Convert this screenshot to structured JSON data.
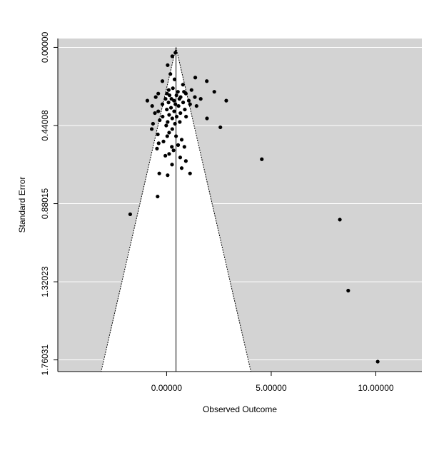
{
  "chart_data": {
    "type": "scatter",
    "title": "",
    "xlabel": "Observed Outcome",
    "ylabel": "Standard Error",
    "xlim": [
      -5.2,
      12.2
    ],
    "ylim": [
      1.826,
      -0.05
    ],
    "y_reversed": true,
    "x_ticks": [
      0,
      5,
      10
    ],
    "x_tick_labels": [
      "0.00000",
      "5.00000",
      "10.00000"
    ],
    "y_ticks": [
      0,
      0.44008,
      0.88015,
      1.32023,
      1.76031
    ],
    "y_tick_labels": [
      "0.00000",
      "0.44008",
      "0.88015",
      "1.32023",
      "1.76031"
    ],
    "grid": "horizontal",
    "background": "#d3d3d3",
    "funnel_fill": "#ffffff",
    "point_color": "#000000",
    "center_estimate": 0.45,
    "funnel_multiplier": 1.96,
    "points": [
      [
        0.27,
        0.05
      ],
      [
        0.42,
        0.03
      ],
      [
        0.05,
        0.1
      ],
      [
        0.18,
        0.15
      ],
      [
        1.37,
        0.17
      ],
      [
        1.92,
        0.19
      ],
      [
        0.38,
        0.18
      ],
      [
        -0.2,
        0.19
      ],
      [
        0.78,
        0.21
      ],
      [
        0.3,
        0.23
      ],
      [
        0.1,
        0.24
      ],
      [
        1.19,
        0.24
      ],
      [
        0.54,
        0.25
      ],
      [
        0.83,
        0.25
      ],
      [
        -0.4,
        0.26
      ],
      [
        0.02,
        0.26
      ],
      [
        0.14,
        0.27
      ],
      [
        0.92,
        0.26
      ],
      [
        2.28,
        0.25
      ],
      [
        0.47,
        0.27
      ],
      [
        0.67,
        0.28
      ],
      [
        1.35,
        0.28
      ],
      [
        -0.52,
        0.28
      ],
      [
        0.23,
        0.29
      ],
      [
        -0.05,
        0.29
      ],
      [
        0.61,
        0.29
      ],
      [
        1.63,
        0.29
      ],
      [
        1.06,
        0.3
      ],
      [
        -0.92,
        0.3
      ],
      [
        0.35,
        0.3
      ],
      [
        0.09,
        0.31
      ],
      [
        0.79,
        0.31
      ],
      [
        2.85,
        0.3
      ],
      [
        0.42,
        0.32
      ],
      [
        -0.2,
        0.32
      ],
      [
        1.12,
        0.32
      ],
      [
        -0.69,
        0.33
      ],
      [
        0.57,
        0.33
      ],
      [
        0.21,
        0.34
      ],
      [
        1.43,
        0.33
      ],
      [
        0.01,
        0.35
      ],
      [
        0.87,
        0.35
      ],
      [
        -0.4,
        0.36
      ],
      [
        0.36,
        0.36
      ],
      [
        -0.56,
        0.37
      ],
      [
        0.66,
        0.37
      ],
      [
        0.12,
        0.38
      ],
      [
        -0.19,
        0.39
      ],
      [
        0.48,
        0.39
      ],
      [
        0.93,
        0.39
      ],
      [
        0.27,
        0.4
      ],
      [
        -0.33,
        0.41
      ],
      [
        1.93,
        0.4
      ],
      [
        0.63,
        0.42
      ],
      [
        0.05,
        0.42
      ],
      [
        -0.65,
        0.43
      ],
      [
        0.4,
        0.43
      ],
      [
        -0.02,
        0.44
      ],
      [
        0.27,
        0.46
      ],
      [
        2.57,
        0.45
      ],
      [
        -0.71,
        0.46
      ],
      [
        0.12,
        0.48
      ],
      [
        -0.42,
        0.49
      ],
      [
        0.45,
        0.5
      ],
      [
        0.03,
        0.5
      ],
      [
        -0.15,
        0.53
      ],
      [
        0.72,
        0.52
      ],
      [
        -0.38,
        0.54
      ],
      [
        0.55,
        0.55
      ],
      [
        0.25,
        0.56
      ],
      [
        0.12,
        0.6
      ],
      [
        0.85,
        0.56
      ],
      [
        -0.46,
        0.57
      ],
      [
        0.33,
        0.58
      ],
      [
        -0.06,
        0.61
      ],
      [
        0.65,
        0.62
      ],
      [
        4.55,
        0.63
      ],
      [
        0.26,
        0.66
      ],
      [
        0.92,
        0.64
      ],
      [
        0.72,
        0.68
      ],
      [
        -0.35,
        0.71
      ],
      [
        0.05,
        0.72
      ],
      [
        1.12,
        0.71
      ],
      [
        -0.43,
        0.84
      ],
      [
        -1.74,
        0.94
      ],
      [
        8.28,
        0.97
      ],
      [
        8.68,
        1.37
      ],
      [
        10.09,
        1.77
      ]
    ]
  }
}
